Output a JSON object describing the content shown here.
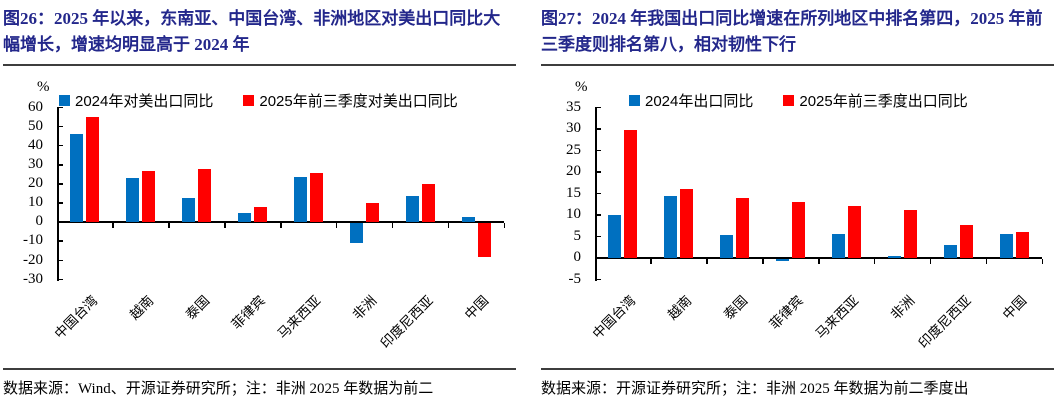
{
  "figures": [
    {
      "title": "图26：2025 年以来，东南亚、中国台湾、非洲地区对美出口同比大幅增长，增速均明显高于 2024 年",
      "source": "数据来源：Wind、开源证券研究所；注：非洲 2025 年数据为前二"
    },
    {
      "title": "图27：2024 年我国出口同比增速在所列地区中排名第四，2025 年前三季度则排名第八，相对韧性下行",
      "source": "数据来源：开源证券研究所；注：非洲 2025 年数据为前二季度出"
    }
  ],
  "chart_data": [
    {
      "type": "bar",
      "title": "图26 对美出口同比",
      "unit_label": "%",
      "categories": [
        "中国台湾",
        "越南",
        "泰国",
        "菲律宾",
        "马来西亚",
        "非洲",
        "印度尼西亚",
        "中国"
      ],
      "series": [
        {
          "name": "2024年对美出口同比",
          "color": "#0070C0",
          "values": [
            46,
            23,
            13,
            5,
            23.5,
            -10.5,
            14,
            3
          ]
        },
        {
          "name": "2025年前三季度对美出口同比",
          "color": "#FF0000",
          "values": [
            55,
            27,
            28,
            8,
            26,
            10,
            20,
            -17.5
          ]
        }
      ],
      "ylim": [
        -30,
        60
      ],
      "ytick_step": 10,
      "legend_position": "top",
      "grid": false
    },
    {
      "type": "bar",
      "title": "图27 出口同比",
      "unit_label": "%",
      "categories": [
        "中国台湾",
        "越南",
        "泰国",
        "菲律宾",
        "马来西亚",
        "非洲",
        "印度尼西亚",
        "中国"
      ],
      "series": [
        {
          "name": "2024年出口同比",
          "color": "#0070C0",
          "values": [
            10,
            14.5,
            5.5,
            -0.5,
            5.7,
            0.4,
            3,
            5.7
          ]
        },
        {
          "name": "2025年前三季度出口同比",
          "color": "#FF0000",
          "values": [
            29.8,
            16,
            14,
            13,
            12.2,
            11.2,
            7.7,
            6.1
          ]
        }
      ],
      "ylim": [
        -5,
        35
      ],
      "ytick_step": 5,
      "legend_position": "top",
      "grid": false
    }
  ],
  "colors": {
    "title_navy": "#23278B",
    "bar_blue": "#0070C0",
    "bar_red": "#FF0000",
    "axis_black": "#000000",
    "rule_gray": "#3d3d3d"
  }
}
